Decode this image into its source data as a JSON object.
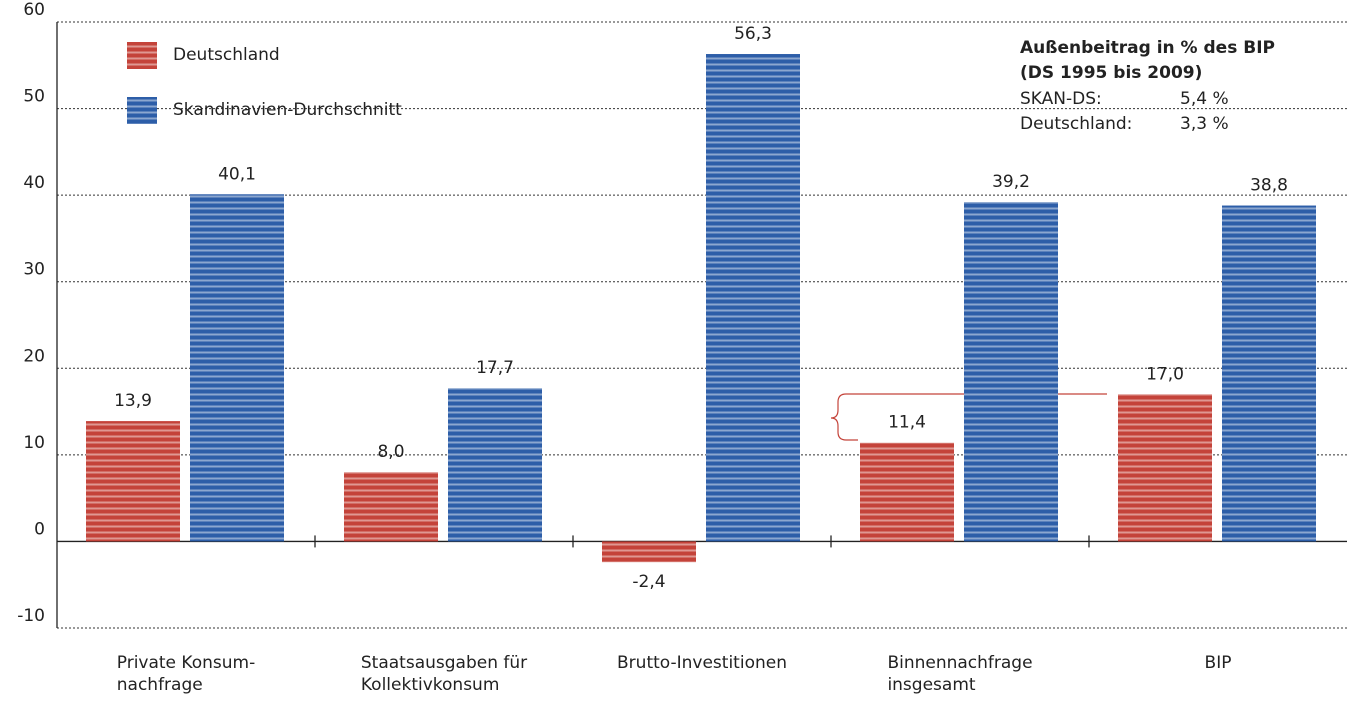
{
  "chart_data": {
    "type": "bar",
    "categories": [
      "Private Konsum-\nnachfrage",
      "Staatsausgaben für\nKollektivkonsum",
      "Brutto-Investitionen",
      "Binnennachfrage\ninsgesamt",
      "BIP"
    ],
    "series": [
      {
        "name": "Deutschland",
        "color": "#c4433a",
        "values": [
          13.9,
          8.0,
          -2.4,
          11.4,
          17.0
        ],
        "value_labels": [
          "13,9",
          "8,0",
          "-2,4",
          "11,4",
          "17,0"
        ]
      },
      {
        "name": "Skandinavien-Durchschnitt",
        "color": "#2d5ea8",
        "values": [
          40.1,
          17.7,
          56.3,
          39.2,
          38.8
        ],
        "value_labels": [
          "40,1",
          "17,7",
          "56,3",
          "39,2",
          "38,8"
        ]
      }
    ],
    "ylim": [
      -10,
      60
    ],
    "yticks": [
      -10,
      0,
      10,
      20,
      30,
      40,
      50,
      60
    ],
    "grid": true,
    "legend": "top-left",
    "annotations": {
      "title": "Außenbeitrag  in % des BIP",
      "subtitle": "(DS 1995 bis 2009)",
      "rows": [
        [
          "SKAN-DS:",
          "5,4 %"
        ],
        [
          "Deutschland:",
          "3,3 %"
        ]
      ]
    }
  }
}
